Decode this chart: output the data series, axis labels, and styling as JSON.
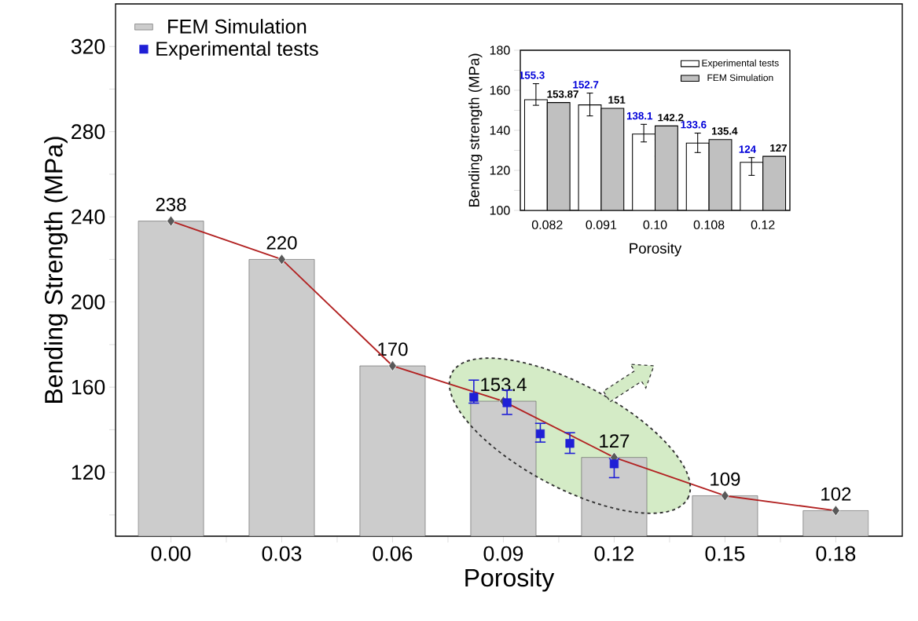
{
  "chart_data": [
    {
      "type": "bar",
      "xlabel": "Porosity",
      "ylabel": "Bending Strength (MPa)",
      "x": [
        0,
        0.03,
        0.06,
        0.09,
        0.12,
        0.15,
        0.18
      ],
      "xlim": [
        -0.015,
        0.198
      ],
      "ylim": [
        90,
        340
      ],
      "xticks": [
        {
          "value": 0,
          "label": "0.00"
        },
        {
          "value": 0.015,
          "label": null
        },
        {
          "value": 0.03,
          "label": "0.03"
        },
        {
          "value": 0.045,
          "label": null
        },
        {
          "value": 0.06,
          "label": "0.06"
        },
        {
          "value": 0.075,
          "label": null
        },
        {
          "value": 0.09,
          "label": "0.09"
        },
        {
          "value": 0.105,
          "label": null
        },
        {
          "value": 0.12,
          "label": "0.12"
        },
        {
          "value": 0.135,
          "label": null
        },
        {
          "value": 0.15,
          "label": "0.15"
        },
        {
          "value": 0.165,
          "label": null
        },
        {
          "value": 0.18,
          "label": "0.18"
        }
      ],
      "yticks": [
        {
          "value": 100,
          "label": null
        },
        120,
        {
          "value": 140,
          "label": null
        },
        160,
        {
          "value": 180,
          "label": null
        },
        200,
        {
          "value": 220,
          "label": null
        },
        240,
        {
          "value": 260,
          "label": null
        },
        280,
        {
          "value": 300,
          "label": null
        },
        320
      ],
      "legend": "top left",
      "series": [
        {
          "name": "FEM Simulation",
          "type": "bar",
          "color": "#cccccc",
          "values": [
            238,
            220,
            170,
            153.4,
            127,
            109,
            102
          ],
          "value_labels": [
            "238",
            "220",
            "170",
            "153.4",
            "127",
            "109",
            "102"
          ]
        },
        {
          "type": "line",
          "color": "#b22222",
          "marker": "diamond",
          "values": [
            238,
            220,
            170,
            153.4,
            127,
            109,
            102
          ]
        },
        {
          "name": "Experimental tests",
          "type": "scatter",
          "color": "#1f1fd6",
          "marker": "square",
          "x": [
            0.082,
            0.091,
            0.1,
            0.108,
            0.12
          ],
          "values": [
            155.3,
            152.7,
            138.1,
            133.6,
            124
          ],
          "errors": [
            [
              152.5,
              163.3
            ],
            [
              147.2,
              158.6
            ],
            [
              134.2,
              143
            ],
            [
              128.9,
              138.6
            ],
            [
              117.5,
              126.4
            ]
          ]
        }
      ]
    },
    {
      "type": "bar",
      "xlabel": "Porosity",
      "ylabel": "Bending strength (MPa)",
      "categories": [
        "0.082",
        "0.091",
        "0.10",
        "0.108",
        "0.12"
      ],
      "ylim": [
        100,
        180
      ],
      "yticks": [
        100,
        {
          "value": 110,
          "label": null
        },
        120,
        {
          "value": 130,
          "label": null
        },
        140,
        {
          "value": 150,
          "label": null
        },
        160,
        {
          "value": 170,
          "label": null
        },
        180
      ],
      "legend": "top right",
      "data_labels": true,
      "series": [
        {
          "name": "Experimental tests",
          "color": "#ffffff",
          "values": [
            155.3,
            152.7,
            138.1,
            133.6,
            124
          ],
          "errors": [
            [
              152.5,
              163.3
            ],
            [
              147.2,
              158.6
            ],
            [
              134.2,
              143
            ],
            [
              128.9,
              138.6
            ],
            [
              117.5,
              126.4
            ]
          ]
        },
        {
          "name": "FEM Simulation",
          "color": "#c0c0c0",
          "values": [
            153.87,
            151,
            142.2,
            135.4,
            127
          ]
        }
      ]
    }
  ]
}
